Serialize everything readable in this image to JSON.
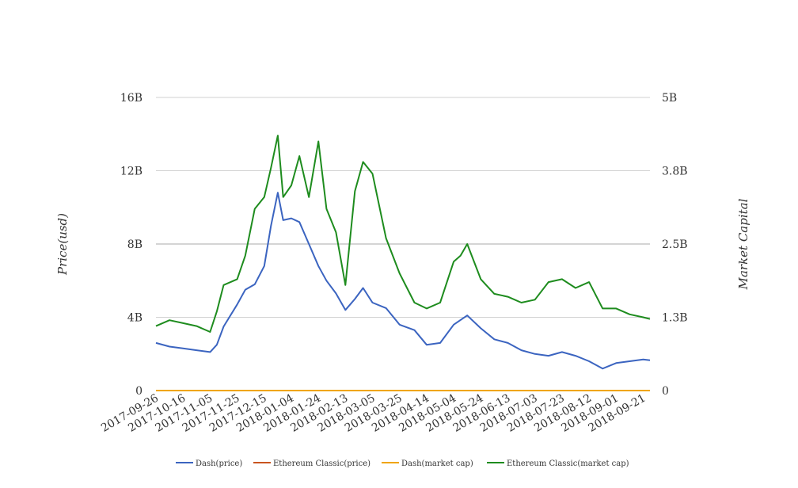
{
  "chart_data": {
    "type": "line",
    "title": "",
    "ylabel": "Price(usd)",
    "y2label": "Market Capital",
    "ylim": [
      0,
      16000000000
    ],
    "y2lim": [
      0,
      5000000000
    ],
    "y_ticks": [
      "0",
      "4B",
      "8B",
      "12B",
      "16B"
    ],
    "y2_ticks": [
      "0",
      "1.3B",
      "2.5B",
      "3.8B",
      "5B"
    ],
    "x_ticks": [
      "2017-09-26",
      "2017-10-16",
      "2017-11-05",
      "2017-11-25",
      "2017-12-15",
      "2018-01-04",
      "2018-01-24",
      "2018-02-13",
      "2018-03-05",
      "2018-03-25",
      "2018-04-14",
      "2018-05-04",
      "2018-05-24",
      "2018-06-13",
      "2018-07-03",
      "2018-07-23",
      "2018-08-12",
      "2018-09-01",
      "2018-09-21"
    ],
    "x_start": "2017-09-26",
    "x_end": "2018-09-26",
    "grid": true,
    "legend_position": "bottom-center",
    "series": [
      {
        "name": "Dash(price)",
        "color": "#3b64c0",
        "axis": "left",
        "x": [
          "2017-09-26",
          "2017-10-06",
          "2017-10-16",
          "2017-10-26",
          "2017-11-05",
          "2017-11-10",
          "2017-11-15",
          "2017-11-25",
          "2017-12-01",
          "2017-12-08",
          "2017-12-15",
          "2017-12-20",
          "2017-12-25",
          "2017-12-29",
          "2018-01-04",
          "2018-01-10",
          "2018-01-17",
          "2018-01-24",
          "2018-01-30",
          "2018-02-06",
          "2018-02-13",
          "2018-02-20",
          "2018-02-26",
          "2018-03-05",
          "2018-03-15",
          "2018-03-25",
          "2018-04-05",
          "2018-04-14",
          "2018-04-24",
          "2018-05-04",
          "2018-05-14",
          "2018-05-24",
          "2018-06-03",
          "2018-06-13",
          "2018-06-23",
          "2018-07-03",
          "2018-07-13",
          "2018-07-23",
          "2018-08-02",
          "2018-08-12",
          "2018-08-22",
          "2018-09-01",
          "2018-09-11",
          "2018-09-21",
          "2018-09-26"
        ],
        "values": [
          2600000000,
          2400000000,
          2300000000,
          2200000000,
          2100000000,
          2500000000,
          3500000000,
          4700000000,
          5500000000,
          5800000000,
          6800000000,
          9000000000,
          10800000000,
          9300000000,
          9400000000,
          9200000000,
          8000000000,
          6800000000,
          6000000000,
          5300000000,
          4400000000,
          5000000000,
          5600000000,
          4800000000,
          4500000000,
          3600000000,
          3300000000,
          2500000000,
          2600000000,
          3600000000,
          4100000000,
          3400000000,
          2800000000,
          2600000000,
          2200000000,
          2000000000,
          1900000000,
          2100000000,
          1900000000,
          1600000000,
          1200000000,
          1500000000,
          1600000000,
          1700000000,
          1650000000
        ]
      },
      {
        "name": "Ethereum Classic(price)",
        "color": "#c9541f",
        "axis": "left",
        "x": [
          "2017-09-26",
          "2018-09-26"
        ],
        "values": [
          0,
          0
        ]
      },
      {
        "name": "Dash(market cap)",
        "color": "#f0a500",
        "axis": "right",
        "x": [
          "2017-09-26",
          "2018-09-26"
        ],
        "values": [
          0,
          0
        ]
      },
      {
        "name": "Ethereum Classic(market cap)",
        "color": "#1e8c1e",
        "axis": "right",
        "x": [
          "2017-09-26",
          "2017-10-06",
          "2017-10-16",
          "2017-10-26",
          "2017-11-05",
          "2017-11-10",
          "2017-11-15",
          "2017-11-25",
          "2017-12-01",
          "2017-12-08",
          "2017-12-15",
          "2017-12-20",
          "2017-12-25",
          "2017-12-29",
          "2018-01-04",
          "2018-01-10",
          "2018-01-17",
          "2018-01-24",
          "2018-01-30",
          "2018-02-06",
          "2018-02-13",
          "2018-02-20",
          "2018-02-26",
          "2018-03-05",
          "2018-03-15",
          "2018-03-25",
          "2018-04-05",
          "2018-04-14",
          "2018-04-24",
          "2018-05-04",
          "2018-05-09",
          "2018-05-14",
          "2018-05-24",
          "2018-06-03",
          "2018-06-13",
          "2018-06-23",
          "2018-07-03",
          "2018-07-13",
          "2018-07-23",
          "2018-08-02",
          "2018-08-12",
          "2018-08-22",
          "2018-09-01",
          "2018-09-11",
          "2018-09-21",
          "2018-09-26"
        ],
        "values": [
          1100000000,
          1200000000,
          1150000000,
          1100000000,
          1000000000,
          1350000000,
          1800000000,
          1900000000,
          2300000000,
          3100000000,
          3300000000,
          3800000000,
          4350000000,
          3300000000,
          3500000000,
          4000000000,
          3300000000,
          4250000000,
          3100000000,
          2700000000,
          1800000000,
          3400000000,
          3900000000,
          3700000000,
          2600000000,
          2000000000,
          1500000000,
          1400000000,
          1500000000,
          2200000000,
          2300000000,
          2500000000,
          1900000000,
          1650000000,
          1600000000,
          1500000000,
          1550000000,
          1850000000,
          1900000000,
          1750000000,
          1850000000,
          1400000000,
          1400000000,
          1300000000,
          1250000000,
          1220000000
        ]
      }
    ]
  }
}
